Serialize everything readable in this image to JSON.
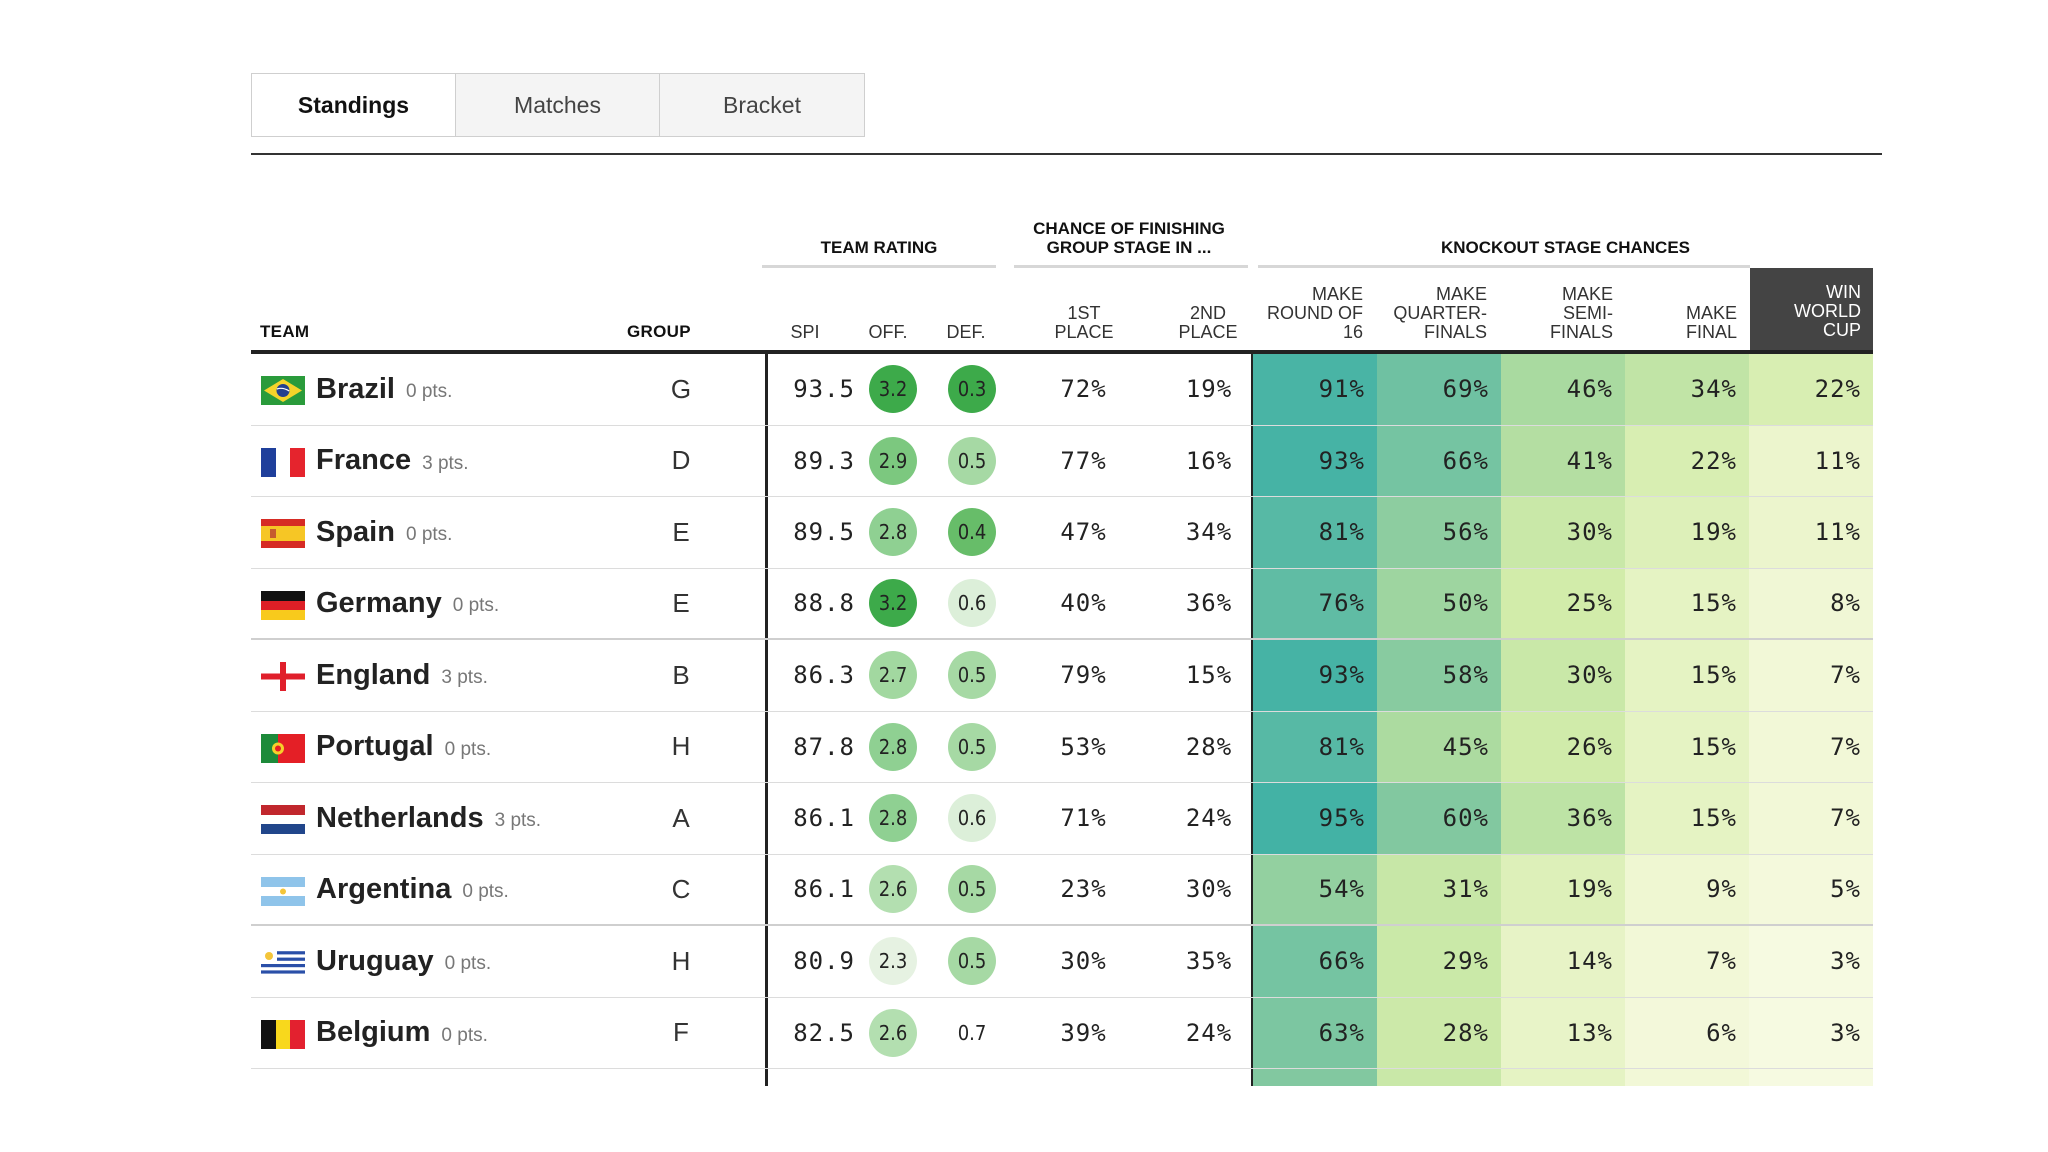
{
  "tabs": [
    {
      "label": "Standings",
      "active": true
    },
    {
      "label": "Matches",
      "active": false
    },
    {
      "label": "Bracket",
      "active": false
    }
  ],
  "header": {
    "team": "TEAM",
    "group": "GROUP",
    "team_rating": "TEAM RATING",
    "chance_finishing_line1": "CHANCE OF FINISHING",
    "chance_finishing_line2": "GROUP STAGE IN ...",
    "knockout": "KNOCKOUT STAGE CHANCES",
    "spi": "SPI",
    "off": "OFF.",
    "def": "DEF.",
    "first_place": [
      "1ST",
      "PLACE"
    ],
    "second_place": [
      "2ND",
      "PLACE"
    ],
    "make_r16": [
      "MAKE",
      "ROUND OF",
      "16"
    ],
    "make_qf": [
      "MAKE",
      "QUARTER-",
      "FINALS"
    ],
    "make_sf": [
      "MAKE",
      "SEMI-",
      "FINALS"
    ],
    "make_final": [
      "MAKE",
      "FINAL"
    ],
    "win_cup": [
      "WIN",
      "WORLD",
      "CUP"
    ]
  },
  "rows": [
    {
      "team": "Brazil",
      "pts": "0 pts.",
      "flag": "brazil",
      "group": "G",
      "spi": "93.5",
      "off": "3.2",
      "def": "0.3",
      "p1": "72%",
      "p2": "19%",
      "r16": "91%",
      "qf": "69%",
      "sf": "46%",
      "final": "34%",
      "win": "22%"
    },
    {
      "team": "France",
      "pts": "3 pts.",
      "flag": "france",
      "group": "D",
      "spi": "89.3",
      "off": "2.9",
      "def": "0.5",
      "p1": "77%",
      "p2": "16%",
      "r16": "93%",
      "qf": "66%",
      "sf": "41%",
      "final": "22%",
      "win": "11%"
    },
    {
      "team": "Spain",
      "pts": "0 pts.",
      "flag": "spain",
      "group": "E",
      "spi": "89.5",
      "off": "2.8",
      "def": "0.4",
      "p1": "47%",
      "p2": "34%",
      "r16": "81%",
      "qf": "56%",
      "sf": "30%",
      "final": "19%",
      "win": "11%"
    },
    {
      "team": "Germany",
      "pts": "0 pts.",
      "flag": "germany",
      "group": "E",
      "spi": "88.8",
      "off": "3.2",
      "def": "0.6",
      "p1": "40%",
      "p2": "36%",
      "r16": "76%",
      "qf": "50%",
      "sf": "25%",
      "final": "15%",
      "win": "8%"
    },
    {
      "team": "England",
      "pts": "3 pts.",
      "flag": "england",
      "group": "B",
      "spi": "86.3",
      "off": "2.7",
      "def": "0.5",
      "p1": "79%",
      "p2": "15%",
      "r16": "93%",
      "qf": "58%",
      "sf": "30%",
      "final": "15%",
      "win": "7%"
    },
    {
      "team": "Portugal",
      "pts": "0 pts.",
      "flag": "portugal",
      "group": "H",
      "spi": "87.8",
      "off": "2.8",
      "def": "0.5",
      "p1": "53%",
      "p2": "28%",
      "r16": "81%",
      "qf": "45%",
      "sf": "26%",
      "final": "15%",
      "win": "7%"
    },
    {
      "team": "Netherlands",
      "pts": "3 pts.",
      "flag": "netherlands",
      "group": "A",
      "spi": "86.1",
      "off": "2.8",
      "def": "0.6",
      "p1": "71%",
      "p2": "24%",
      "r16": "95%",
      "qf": "60%",
      "sf": "36%",
      "final": "15%",
      "win": "7%"
    },
    {
      "team": "Argentina",
      "pts": "0 pts.",
      "flag": "argentina",
      "group": "C",
      "spi": "86.1",
      "off": "2.6",
      "def": "0.5",
      "p1": "23%",
      "p2": "30%",
      "r16": "54%",
      "qf": "31%",
      "sf": "19%",
      "final": "9%",
      "win": "5%"
    },
    {
      "team": "Uruguay",
      "pts": "0 pts.",
      "flag": "uruguay",
      "group": "H",
      "spi": "80.9",
      "off": "2.3",
      "def": "0.5",
      "p1": "30%",
      "p2": "35%",
      "r16": "66%",
      "qf": "29%",
      "sf": "14%",
      "final": "7%",
      "win": "3%"
    },
    {
      "team": "Belgium",
      "pts": "0 pts.",
      "flag": "belgium",
      "group": "F",
      "spi": "82.5",
      "off": "2.6",
      "def": "0.7",
      "p1": "39%",
      "p2": "24%",
      "r16": "63%",
      "qf": "28%",
      "sf": "13%",
      "final": "6%",
      "win": "3%"
    }
  ],
  "colors": {
    "off_scale": {
      "3.2": "#3daa4a",
      "2.9": "#7cc87f",
      "2.8": "#8fd092",
      "2.7": "#a2d8a0",
      "2.6": "#b3dfb0",
      "2.3": "#e6f2e2"
    },
    "def_scale": {
      "0.3": "#3daa4a",
      "0.4": "#67bd69",
      "0.5": "#a6d9a4",
      "0.6": "#dcefd9",
      "0.7": "#ffffff"
    }
  }
}
